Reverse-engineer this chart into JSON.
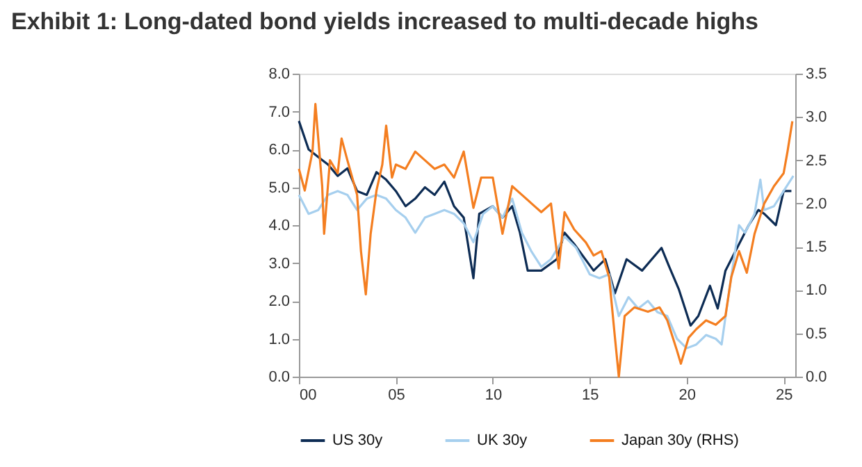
{
  "chart_data": {
    "type": "line",
    "title": "Exhibit 1: Long-dated bond yields increased to multi-decade highs",
    "x": [
      2000,
      2000.5,
      2001,
      2001.5,
      2002,
      2002.5,
      2003,
      2003.5,
      2004,
      2004.5,
      2005,
      2005.5,
      2006,
      2006.5,
      2007,
      2007.5,
      2008,
      2008.5,
      2009,
      2009.3,
      2010,
      2010.5,
      2011,
      2011.4,
      2011.8,
      2012.5,
      2013.3,
      2013.7,
      2014.2,
      2015.2,
      2015.8,
      2016.3,
      2016.9,
      2017.7,
      2018.7,
      2019.1,
      2019.6,
      2020.2,
      2020.6,
      2021.2,
      2021.6,
      2022.0,
      2022.5,
      2023.2,
      2023.7,
      2024.0,
      2024.6,
      2025.0,
      2025.4
    ],
    "series": [
      {
        "name": "US 30y",
        "color": "#0d2c54",
        "values": [
          6.75,
          6.0,
          5.8,
          5.6,
          5.3,
          5.5,
          4.9,
          4.8,
          5.4,
          5.2,
          4.9,
          4.5,
          4.7,
          5.0,
          4.8,
          5.15,
          4.5,
          4.2,
          2.6,
          4.3,
          4.5,
          4.2,
          4.5,
          3.8,
          2.8,
          2.8,
          3.1,
          3.8,
          3.5,
          2.8,
          3.1,
          2.2,
          3.1,
          2.8,
          3.4,
          2.9,
          2.3,
          1.35,
          1.6,
          2.4,
          1.8,
          2.8,
          3.3,
          4.0,
          4.4,
          4.3,
          4.0,
          4.9,
          4.9
        ]
      },
      {
        "name": "UK 30y",
        "color": "#a6cfee",
        "x": [
          2000,
          2000.5,
          2001,
          2001.5,
          2002,
          2002.5,
          2003,
          2003.5,
          2004,
          2004.5,
          2005,
          2005.5,
          2006,
          2006.5,
          2007,
          2007.5,
          2008,
          2008.5,
          2009,
          2009.5,
          2010,
          2010.5,
          2011,
          2011.5,
          2012,
          2012.5,
          2013,
          2013.7,
          2014.3,
          2015,
          2015.5,
          2016,
          2016.5,
          2017,
          2017.5,
          2018,
          2018.5,
          2019,
          2019.5,
          2020,
          2020.5,
          2021,
          2021.5,
          2021.8,
          2022.2,
          2022.7,
          2023,
          2023.5,
          2023.8,
          2024,
          2024.5,
          2025,
          2025.5
        ],
        "values": [
          4.8,
          4.3,
          4.4,
          4.8,
          4.9,
          4.8,
          4.4,
          4.7,
          4.8,
          4.7,
          4.4,
          4.2,
          3.8,
          4.2,
          4.3,
          4.4,
          4.3,
          4.05,
          3.55,
          4.3,
          4.5,
          4.2,
          4.7,
          3.8,
          3.3,
          2.9,
          3.1,
          3.7,
          3.4,
          2.7,
          2.6,
          2.7,
          1.6,
          2.1,
          1.8,
          2.0,
          1.7,
          1.6,
          1.0,
          0.75,
          0.85,
          1.1,
          1.0,
          0.85,
          2.3,
          4.0,
          3.8,
          4.3,
          5.2,
          4.4,
          4.5,
          4.9,
          5.3
        ]
      },
      {
        "name": "Japan 30y (RHS)",
        "color": "#f47e20",
        "axis": "y2",
        "x": [
          2000,
          2000.3,
          2000.7,
          2000.85,
          2001.2,
          2001.3,
          2001.6,
          2002,
          2002.2,
          2002.5,
          2003,
          2003.2,
          2003.45,
          2003.7,
          2004,
          2004.3,
          2004.5,
          2004.8,
          2005,
          2005.5,
          2006,
          2006.5,
          2007,
          2007.5,
          2008,
          2008.5,
          2009,
          2009.4,
          2010,
          2010.5,
          2011,
          2011.5,
          2012,
          2012.5,
          2013,
          2013.4,
          2013.7,
          2014.2,
          2014.8,
          2015.2,
          2015.6,
          2016.0,
          2016.3,
          2016.5,
          2016.8,
          2017.3,
          2018,
          2018.6,
          2019,
          2019.5,
          2019.7,
          2020.1,
          2020.5,
          2021,
          2021.5,
          2022,
          2022.3,
          2022.7,
          2023.1,
          2023.5,
          2024,
          2024.5,
          2025.0,
          2025.2,
          2025.45
        ],
        "values": [
          2.4,
          2.15,
          2.6,
          3.15,
          2.2,
          1.65,
          2.5,
          2.35,
          2.75,
          2.5,
          2.1,
          1.45,
          0.95,
          1.65,
          2.15,
          2.45,
          2.9,
          2.3,
          2.45,
          2.4,
          2.6,
          2.5,
          2.4,
          2.45,
          2.3,
          2.6,
          1.95,
          2.3,
          2.3,
          1.65,
          2.2,
          2.1,
          2.0,
          1.9,
          2.0,
          1.25,
          1.9,
          1.7,
          1.55,
          1.4,
          1.45,
          1.15,
          0.45,
          0.0,
          0.7,
          0.8,
          0.75,
          0.8,
          0.65,
          0.3,
          0.15,
          0.45,
          0.55,
          0.65,
          0.6,
          0.7,
          1.15,
          1.45,
          1.2,
          1.65,
          2.0,
          2.2,
          2.35,
          2.6,
          2.95
        ]
      }
    ],
    "xlim": [
      2000,
      2025.6
    ],
    "xticks": [
      {
        "value": 2000,
        "label": "00"
      },
      {
        "value": 2005,
        "label": "05"
      },
      {
        "value": 2010,
        "label": "10"
      },
      {
        "value": 2015,
        "label": "15"
      },
      {
        "value": 2020,
        "label": "20"
      },
      {
        "value": 2025,
        "label": "25"
      }
    ],
    "ylim": [
      0,
      8
    ],
    "yticks": [
      {
        "value": 0,
        "label": "0.0"
      },
      {
        "value": 1,
        "label": "1.0"
      },
      {
        "value": 2,
        "label": "2.0"
      },
      {
        "value": 3,
        "label": "3.0"
      },
      {
        "value": 4,
        "label": "4.0"
      },
      {
        "value": 5,
        "label": "5.0"
      },
      {
        "value": 6,
        "label": "6.0"
      },
      {
        "value": 7,
        "label": "7.0"
      },
      {
        "value": 8,
        "label": "8.0"
      }
    ],
    "y2lim": [
      0,
      3.5
    ],
    "y2ticks": [
      {
        "value": 0,
        "label": "0.0"
      },
      0.5,
      {
        "value": 1,
        "label": "1.0"
      },
      1.5,
      {
        "value": 2,
        "label": "2.0"
      },
      2.5,
      {
        "value": 3,
        "label": "3.0"
      },
      3.5
    ],
    "grid": false,
    "legend": "bottom",
    "line_style": "solid"
  }
}
